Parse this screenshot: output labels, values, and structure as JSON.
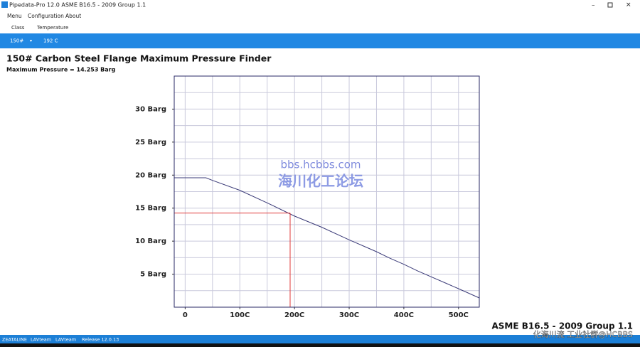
{
  "window": {
    "title": "Pipedata-Pro 12.0 ASME B16.5 - 2009 Group 1.1"
  },
  "menu": [
    "Menu",
    "Configuration",
    "About"
  ],
  "toolbar": {
    "labels": [
      "Class",
      "Temperature"
    ],
    "values": [
      "150#",
      "192  C"
    ]
  },
  "heading": "150# Carbon Steel Flange Maximum Pressure Finder",
  "result": "Maximum Pressure = 14.253 Barg",
  "chart_data": {
    "type": "line",
    "x": [
      -20,
      38,
      50,
      100,
      150,
      200,
      250,
      300,
      325,
      350,
      375,
      400,
      425,
      450,
      475,
      500,
      538
    ],
    "series": [
      {
        "color": "#3b3b78",
        "values": [
          19.6,
          19.6,
          19.2,
          17.7,
          15.8,
          13.8,
          12.1,
          10.2,
          9.3,
          8.4,
          7.4,
          6.5,
          5.5,
          4.6,
          3.7,
          2.8,
          1.4
        ]
      }
    ],
    "xlim": [
      -20,
      538
    ],
    "ylim": [
      0,
      35
    ],
    "xticks": [
      0,
      {
        "value": 100,
        "label": "100C"
      },
      {
        "value": 200,
        "label": "200C"
      },
      {
        "value": 300,
        "label": "300C"
      },
      {
        "value": 400,
        "label": "400C"
      },
      {
        "value": 500,
        "label": "500C"
      }
    ],
    "yticks": [
      {
        "value": 5,
        "label": "5 Barg"
      },
      {
        "value": 10,
        "label": "10 Barg"
      },
      {
        "value": 15,
        "label": "15 Barg"
      },
      {
        "value": 20,
        "label": "20 Barg"
      },
      {
        "value": 25,
        "label": "25 Barg"
      },
      {
        "value": 30,
        "label": "30 Barg"
      }
    ],
    "xgrid": [
      0,
      50,
      100,
      150,
      200,
      250,
      300,
      350,
      400,
      450,
      500
    ],
    "ygrid": [
      2.5,
      5,
      7.5,
      10,
      12.5,
      15,
      17.5,
      20,
      22.5,
      25,
      27.5,
      30,
      32.5
    ],
    "grid_color": "#c9c9dc",
    "marker": {
      "x": 192,
      "y": 14.253,
      "color": "#e03a3a"
    }
  },
  "footer_title": "ASME B16.5 - 2009 Group 1.1",
  "watermark": [
    "bbs.hcbbs.com",
    "海川化工论坛",
    "化海川流 工业社群@HCBBS"
  ],
  "status_bar": [
    "ZEATALINE",
    "LAVteam",
    "LAVteam",
    "Release 12.0.13"
  ]
}
